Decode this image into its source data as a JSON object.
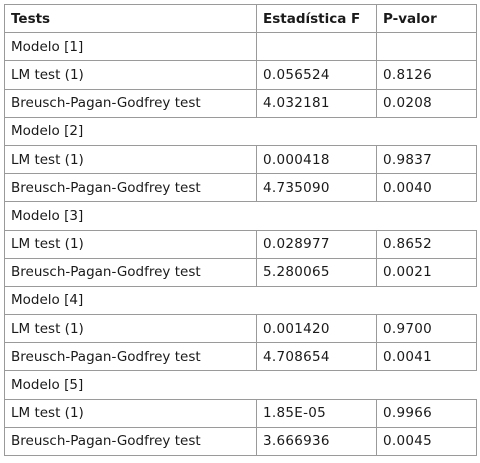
{
  "table": {
    "headers": [
      "Tests",
      "Estadística F",
      "P-valor"
    ],
    "groups": [
      {
        "model": "Modelo [1]",
        "rows": [
          {
            "test": "LM test (1)",
            "f": "0.056524",
            "p": "0.8126"
          },
          {
            "test": "Breusch-Pagan-Godfrey test",
            "f": "4.032181",
            "p": "0.0208"
          }
        ]
      },
      {
        "model": "Modelo [2]",
        "rows": [
          {
            "test": "LM test (1)",
            "f": "0.000418",
            "p": "0.9837"
          },
          {
            "test": "Breusch-Pagan-Godfrey test",
            "f": "4.735090",
            "p": "0.0040"
          }
        ]
      },
      {
        "model": "Modelo [3]",
        "rows": [
          {
            "test": "LM test (1)",
            "f": "0.028977",
            "p": "0.8652"
          },
          {
            "test": "Breusch-Pagan-Godfrey test",
            "f": "5.280065",
            "p": "0.0021"
          }
        ]
      },
      {
        "model": "Modelo [4]",
        "rows": [
          {
            "test": "LM test (1)",
            "f": "0.001420",
            "p": "0.9700"
          },
          {
            "test": "Breusch-Pagan-Godfrey test",
            "f": "4.708654",
            "p": "0.0041"
          }
        ]
      },
      {
        "model": "Modelo [5]",
        "rows": [
          {
            "test": "LM test (1)",
            "f": "1.85E-05",
            "p": "0.9966"
          },
          {
            "test": "Breusch-Pagan-Godfrey test",
            "f": "3.666936",
            "p": "0.0045"
          }
        ]
      }
    ]
  }
}
